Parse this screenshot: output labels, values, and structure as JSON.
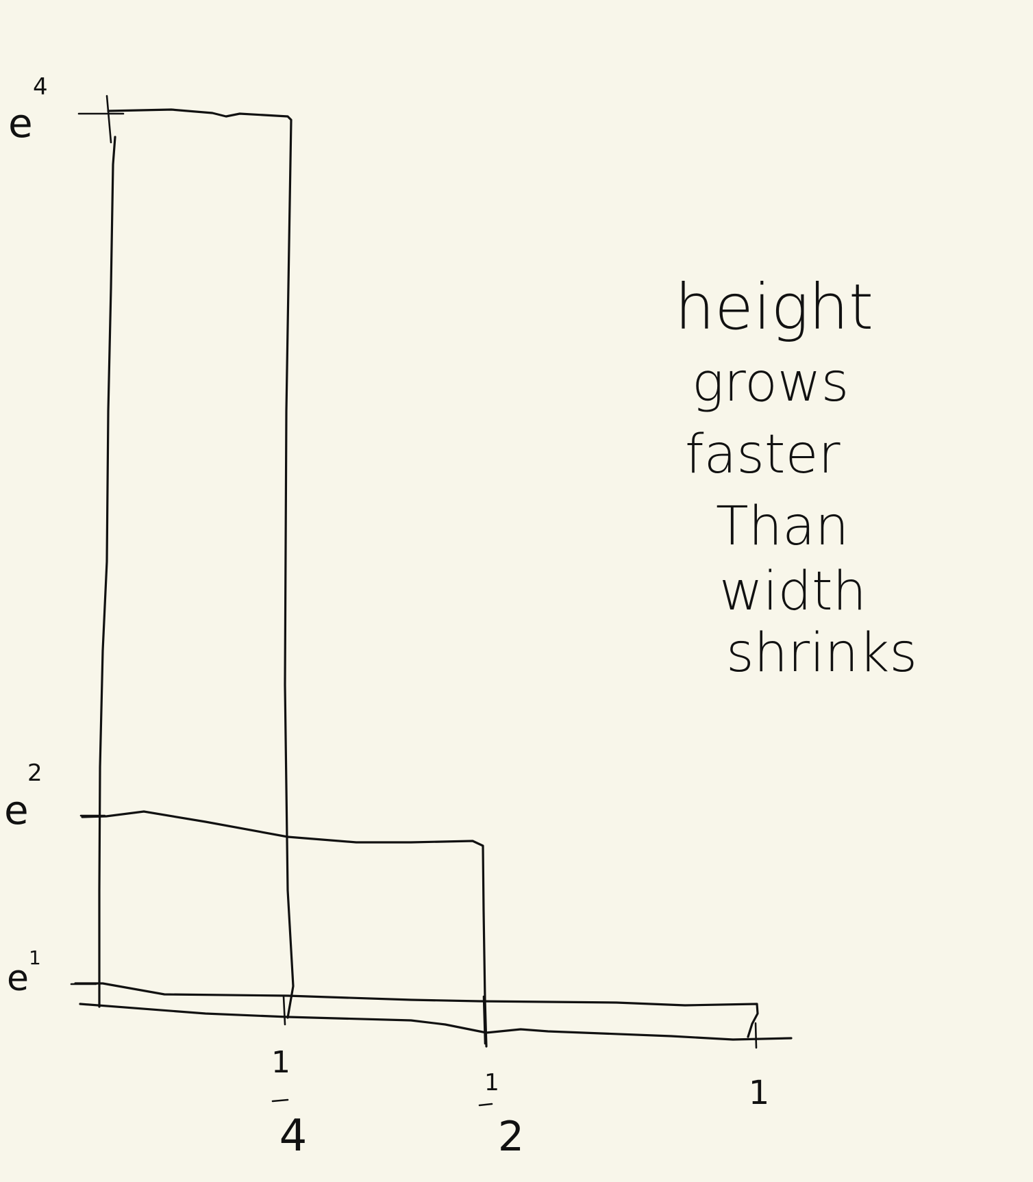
{
  "diagram": {
    "y_labels": [
      {
        "base": "e",
        "exp": "4"
      },
      {
        "base": "e",
        "exp": "2"
      },
      {
        "base": "e",
        "exp": "1"
      }
    ],
    "x_labels": [
      {
        "num": "1",
        "den": "4"
      },
      {
        "num": "1",
        "den": "2"
      },
      {
        "num": "1",
        "den": ""
      }
    ],
    "bars": [
      {
        "width": 0.25,
        "height_exp": 4
      },
      {
        "width": 0.5,
        "height_exp": 2
      },
      {
        "width": 1,
        "height_exp": 1
      }
    ],
    "note_lines": [
      "height",
      "grows",
      "faster",
      "Than",
      "width",
      "shrinks"
    ]
  }
}
